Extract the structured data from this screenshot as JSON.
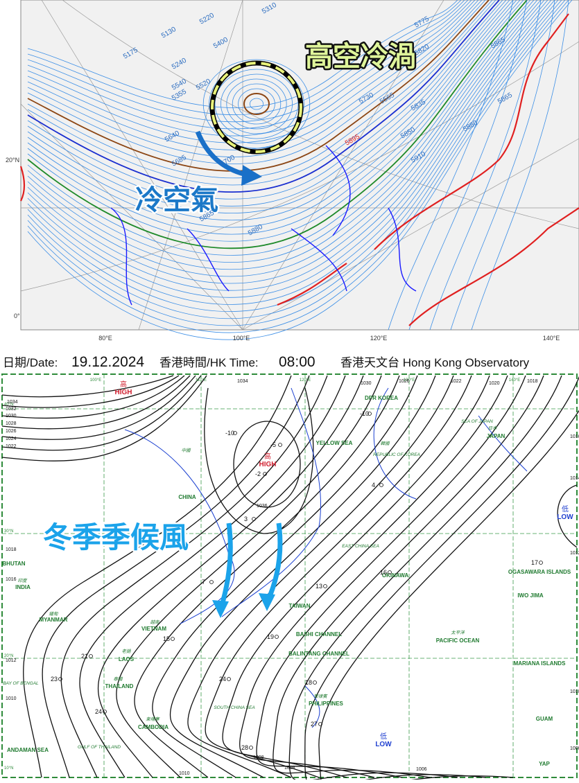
{
  "upper_map": {
    "callout": "高空冷渦",
    "arrow_label": "冷空氣",
    "lat_labels": [
      "20°N",
      "0°"
    ],
    "lon_labels": [
      "80°E",
      "100°E",
      "120°E",
      "140°E"
    ],
    "contour_labels": [
      "5130",
      "5175",
      "5220",
      "5240",
      "5310",
      "5355",
      "5400",
      "5520",
      "5540",
      "5565",
      "5640",
      "5685",
      "5700",
      "5730",
      "5775",
      "5820",
      "5835",
      "5850",
      "5865",
      "5880",
      "5895",
      "5910",
      "5880",
      "5865",
      "5865"
    ]
  },
  "caption": {
    "date_label": "日期/Date:",
    "date": "19.12.2024",
    "time_label": "香港時間/HK Time:",
    "time": "08:00",
    "source": "香港天文台 Hong Kong Observatory"
  },
  "lower_map": {
    "callout": "冬季季候風",
    "pressure_centres": [
      {
        "zh": "高",
        "en": "HIGH"
      },
      {
        "zh": "高",
        "en": "HIGH"
      },
      {
        "zh": "低",
        "en": "LOW"
      },
      {
        "zh": "低",
        "en": "LOW"
      }
    ],
    "lon_labels": [
      "100°E",
      "110°E",
      "120°E",
      "130°E",
      "140°E"
    ],
    "lat_labels": [
      "40°N",
      "30°N",
      "20°N",
      "10°N"
    ],
    "regions": [
      "中國",
      "CHINA",
      "DPR KOREA",
      "韓國",
      "REPUBLIC OF KOREA",
      "日本",
      "JAPAN",
      "SEA OF JAPAN",
      "YELLOW SEA",
      "EAST CHINA SEA",
      "越南",
      "VIETNAM",
      "老撾",
      "LAOS",
      "泰國",
      "THAILAND",
      "柬埔寨",
      "CAMBODIA",
      "緬甸",
      "MYANMAR",
      "印度",
      "INDIA",
      "BHUTAN",
      "菲律賓",
      "PHILIPPINES",
      "SOUTH CHINA SEA",
      "太平洋",
      "PACIFIC OCEAN",
      "BAY OF BENGAL",
      "GULF OF THAILAND",
      "ANDAMAN SEA",
      "BASHI CHANNEL",
      "BALINTANG CHANNEL",
      "TAIWAN",
      "OKINAWA",
      "MARIANA ISLANDS",
      "GUAM",
      "YAP",
      "IWO JIMA",
      "OGASAWARA ISLANDS"
    ],
    "isobar_labels": [
      "1034",
      "1032",
      "1030",
      "1028",
      "1026",
      "1024",
      "1022",
      "1018",
      "1016",
      "1036",
      "1034",
      "1030",
      "1026",
      "1022",
      "1020",
      "1018",
      "1016",
      "1014",
      "1012",
      "1010",
      "1008",
      "1012",
      "1010",
      "1010",
      "1008",
      "1006",
      "1008"
    ],
    "station_temps": [
      "-10",
      "-5",
      "-2",
      "-10",
      "4",
      "3",
      "7",
      "13",
      "16",
      "17",
      "19",
      "15",
      "21",
      "23",
      "24",
      "27",
      "28",
      "18",
      "24"
    ]
  }
}
